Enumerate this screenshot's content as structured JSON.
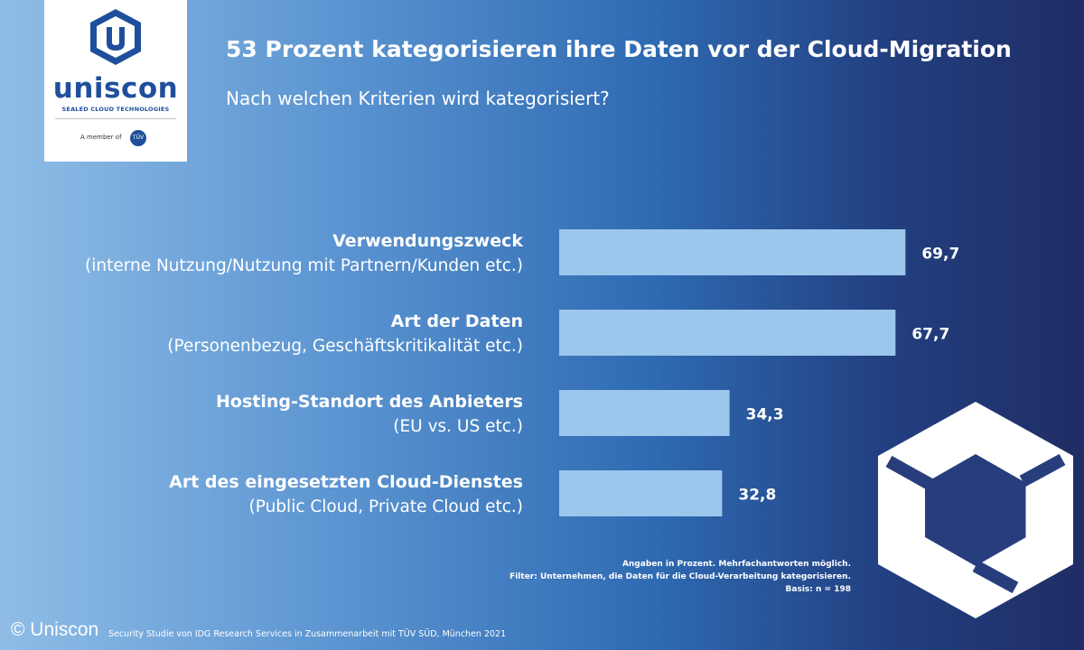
{
  "logo": {
    "wordmark": "uniscon",
    "tagline": "SEALED CLOUD TECHNOLOGIES",
    "member_text": "A member of",
    "member_badge": "TÜV"
  },
  "header": {
    "title": "53 Prozent kategorisieren ihre Daten vor der Cloud-Migration",
    "subtitle": "Nach welchen Kriterien wird kategorisiert?"
  },
  "chart_data": {
    "type": "bar",
    "orientation": "horizontal",
    "categories": [
      {
        "label": "Verwendungszweck",
        "detail": "(interne Nutzung/Nutzung mit Partnern/Kunden etc.)"
      },
      {
        "label": "Art der Daten",
        "detail": "(Personenbezug, Geschäftskritikalität etc.)"
      },
      {
        "label": "Hosting-Standort des Anbieters",
        "detail": "(EU vs. US etc.)"
      },
      {
        "label": "Art des eingesetzten Cloud-Dienstes",
        "detail": "(Public Cloud, Private Cloud etc.)"
      }
    ],
    "values": [
      69.7,
      67.7,
      34.3,
      32.8
    ],
    "value_labels": [
      "69,7",
      "67,7",
      "34,3",
      "32,8"
    ],
    "xlim": [
      0,
      100
    ],
    "bar_color": "#9cc6ec",
    "grid": false
  },
  "notes": [
    "Angaben in Prozent. Mehrfachantworten möglich.",
    "Filter: Unternehmen, die Daten für die Cloud-Verarbeitung kategorisieren.",
    "Basis: n = 198"
  ],
  "source": "Security Studie von IDG Research Services in Zusammenarbeit mit TÜV SÜD, München 2021",
  "copyright": "© Uniscon",
  "colors": {
    "brand_blue": "#1f4f9c",
    "bar": "#9cc6ec",
    "text": "#ffffff"
  }
}
